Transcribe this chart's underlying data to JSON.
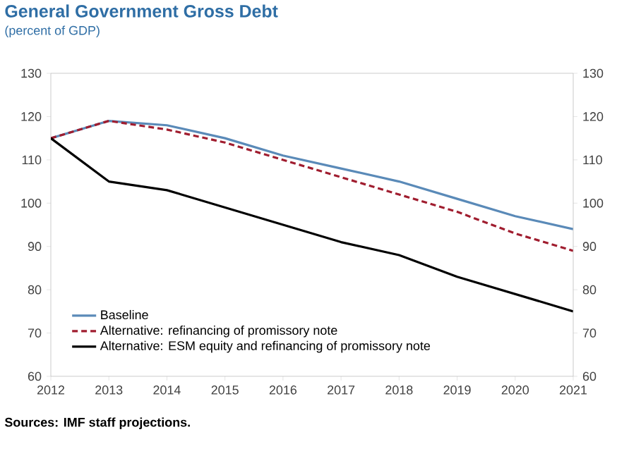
{
  "chart_data": {
    "type": "line",
    "title": "General Government Gross Debt",
    "subtitle": "(percent of GDP)",
    "x": [
      2012,
      2013,
      2014,
      2015,
      2016,
      2017,
      2018,
      2019,
      2020,
      2021
    ],
    "series": [
      {
        "name": "Baseline",
        "color": "#5a8ab8",
        "line_style": "solid",
        "values": [
          115,
          119,
          118,
          115,
          111,
          108,
          105,
          101,
          97,
          94
        ]
      },
      {
        "name": "Alternative: refinancing of promissory note",
        "color": "#a01d2f",
        "line_style": "dashed",
        "values": [
          115,
          119,
          117,
          114,
          110,
          106,
          102,
          98,
          93,
          89
        ]
      },
      {
        "name": "Alternative: ESM equity and refinancing of promissory note",
        "color": "#000000",
        "line_style": "solid",
        "values": [
          115,
          105,
          103,
          99,
          95,
          91,
          88,
          83,
          79,
          75
        ]
      }
    ],
    "xlim": [
      2012,
      2021
    ],
    "xticks": [
      2012,
      2013,
      2014,
      2015,
      2016,
      2017,
      2018,
      2019,
      2020,
      2021
    ],
    "ylim": [
      60,
      130
    ],
    "yticks": [
      60,
      70,
      80,
      90,
      100,
      110,
      120,
      130
    ],
    "y2lim": [
      60,
      130
    ],
    "y2ticks": [
      60,
      70,
      80,
      90,
      100,
      110,
      120,
      130
    ],
    "grid": false,
    "legend": "bottom left",
    "marker": "none",
    "annotations": [
      "Sources: IMF staff projections."
    ]
  }
}
